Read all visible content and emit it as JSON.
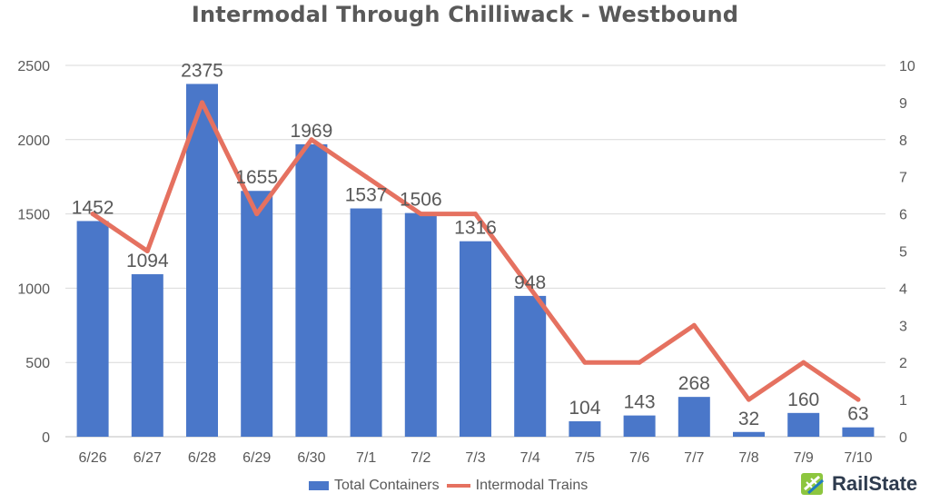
{
  "colors": {
    "bars": "#4a77c9",
    "line": "#e57160",
    "text": "#595959",
    "grid": "#d9d9d9",
    "logo_green": "#8dc63f",
    "logo_blue": "#1f7bc1"
  },
  "logo": {
    "text": "RailState",
    "icon": "railstate-logo-icon"
  },
  "chart_data": {
    "type": "bar",
    "title": "Intermodal Through Chilliwack - Westbound",
    "categories": [
      "6/26",
      "6/27",
      "6/28",
      "6/29",
      "6/30",
      "7/1",
      "7/2",
      "7/3",
      "7/4",
      "7/5",
      "7/6",
      "7/7",
      "7/8",
      "7/9",
      "7/10"
    ],
    "series": [
      {
        "name": "Total Containers",
        "type": "bar",
        "axis": "left",
        "values": [
          1452,
          1094,
          2375,
          1655,
          1969,
          1537,
          1506,
          1316,
          948,
          104,
          143,
          268,
          32,
          160,
          63
        ],
        "data_labels": [
          "1452",
          "1094",
          "2375",
          "1655",
          "1969",
          "1537",
          "1506",
          "1316",
          "948",
          "104",
          "143",
          "268",
          "32",
          "160",
          "63"
        ]
      },
      {
        "name": "Intermodal Trains",
        "type": "line",
        "axis": "right",
        "values": [
          6,
          5,
          9,
          6,
          8,
          7,
          6,
          6,
          4,
          2,
          2,
          3,
          1,
          2,
          1
        ]
      }
    ],
    "y_left": {
      "ylim": [
        0,
        2500
      ],
      "ticks": [
        "0",
        "500",
        "1000",
        "1500",
        "2000",
        "2500"
      ]
    },
    "y_right": {
      "ylim": [
        0,
        10
      ],
      "ticks": [
        "0",
        "1",
        "2",
        "3",
        "4",
        "5",
        "6",
        "7",
        "8",
        "9",
        "10"
      ]
    },
    "grid": true,
    "legend": "bottom-center"
  }
}
